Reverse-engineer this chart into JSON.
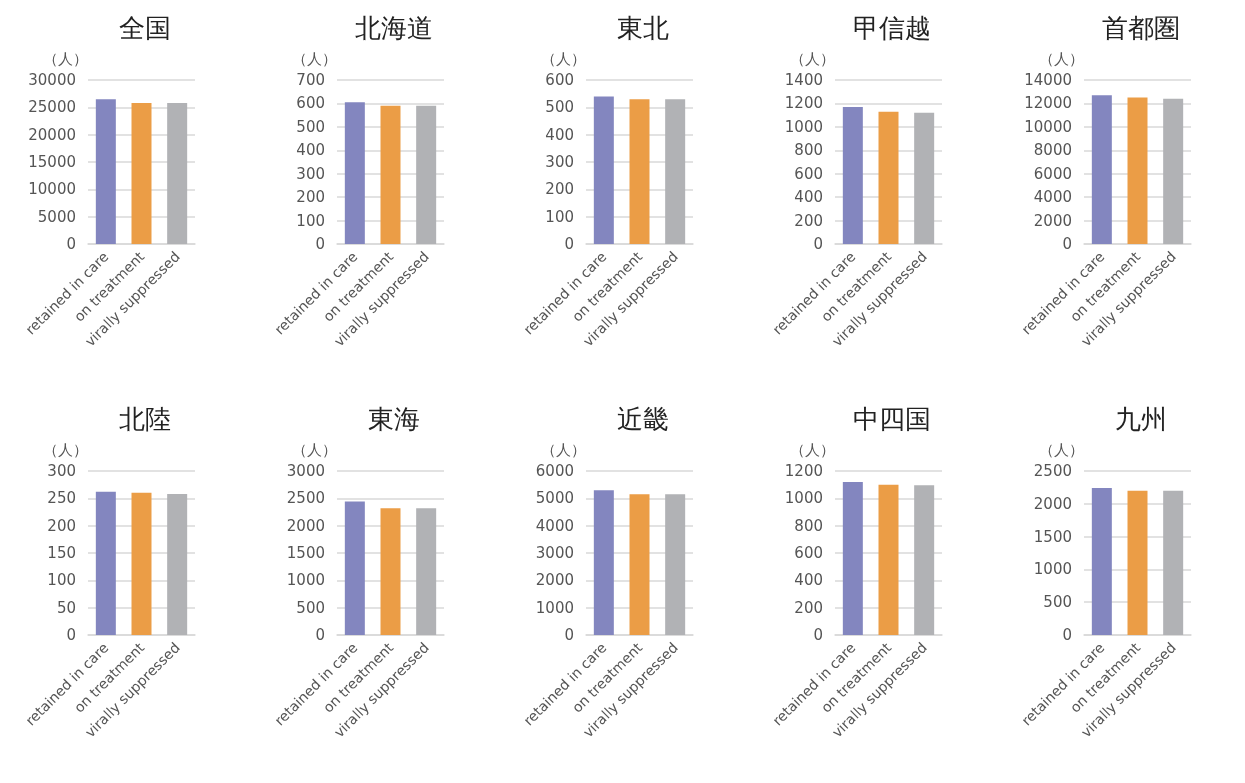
{
  "chart_data": [
    {
      "type": "bar",
      "title": "全国",
      "ylabel": "（人）",
      "categories": [
        "retained in care",
        "on treatment",
        "virally suppressed"
      ],
      "values": [
        26500,
        25800,
        25800
      ],
      "colors": [
        "#8386bf",
        "#eb9d46",
        "#b1b2b5"
      ],
      "ylim": [
        0,
        30000
      ],
      "yticks": [
        0,
        5000,
        10000,
        15000,
        20000,
        25000,
        30000
      ],
      "grid": "y"
    },
    {
      "type": "bar",
      "title": "北海道",
      "ylabel": "（人）",
      "categories": [
        "retained in care",
        "on treatment",
        "virally suppressed"
      ],
      "values": [
        605,
        590,
        590
      ],
      "colors": [
        "#8386bf",
        "#eb9d46",
        "#b1b2b5"
      ],
      "ylim": [
        0,
        700
      ],
      "yticks": [
        0,
        100,
        200,
        300,
        400,
        500,
        600,
        700
      ],
      "grid": "y"
    },
    {
      "type": "bar",
      "title": "東北",
      "ylabel": "（人）",
      "categories": [
        "retained in care",
        "on treatment",
        "virally suppressed"
      ],
      "values": [
        540,
        530,
        530
      ],
      "colors": [
        "#8386bf",
        "#eb9d46",
        "#b1b2b5"
      ],
      "ylim": [
        0,
        600
      ],
      "yticks": [
        0,
        100,
        200,
        300,
        400,
        500,
        600
      ],
      "grid": "y"
    },
    {
      "type": "bar",
      "title": "甲信越",
      "ylabel": "（人）",
      "categories": [
        "retained in care",
        "on treatment",
        "virally suppressed"
      ],
      "values": [
        1170,
        1130,
        1120
      ],
      "colors": [
        "#8386bf",
        "#eb9d46",
        "#b1b2b5"
      ],
      "ylim": [
        0,
        1400
      ],
      "yticks": [
        0,
        200,
        400,
        600,
        800,
        1000,
        1200,
        1400
      ],
      "grid": "y"
    },
    {
      "type": "bar",
      "title": "首都圏",
      "ylabel": "（人）",
      "categories": [
        "retained in care",
        "on treatment",
        "virally suppressed"
      ],
      "values": [
        12700,
        12500,
        12400
      ],
      "colors": [
        "#8386bf",
        "#eb9d46",
        "#b1b2b5"
      ],
      "ylim": [
        0,
        14000
      ],
      "yticks": [
        0,
        2000,
        4000,
        6000,
        8000,
        10000,
        12000,
        14000
      ],
      "grid": "y"
    },
    {
      "type": "bar",
      "title": "北陸",
      "ylabel": "（人）",
      "categories": [
        "retained in care",
        "on treatment",
        "virally suppressed"
      ],
      "values": [
        262,
        260,
        258
      ],
      "colors": [
        "#8386bf",
        "#eb9d46",
        "#b1b2b5"
      ],
      "ylim": [
        0,
        300
      ],
      "yticks": [
        0,
        50,
        100,
        150,
        200,
        250,
        300
      ],
      "grid": "y"
    },
    {
      "type": "bar",
      "title": "東海",
      "ylabel": "（人）",
      "categories": [
        "retained in care",
        "on treatment",
        "virally suppressed"
      ],
      "values": [
        2440,
        2320,
        2320
      ],
      "colors": [
        "#8386bf",
        "#eb9d46",
        "#b1b2b5"
      ],
      "ylim": [
        0,
        3000
      ],
      "yticks": [
        0,
        500,
        1000,
        1500,
        2000,
        2500,
        3000
      ],
      "grid": "y"
    },
    {
      "type": "bar",
      "title": "近畿",
      "ylabel": "（人）",
      "categories": [
        "retained in care",
        "on treatment",
        "virally suppressed"
      ],
      "values": [
        5300,
        5150,
        5150
      ],
      "colors": [
        "#8386bf",
        "#eb9d46",
        "#b1b2b5"
      ],
      "ylim": [
        0,
        6000
      ],
      "yticks": [
        0,
        1000,
        2000,
        3000,
        4000,
        5000,
        6000
      ],
      "grid": "y"
    },
    {
      "type": "bar",
      "title": "中四国",
      "ylabel": "（人）",
      "categories": [
        "retained in care",
        "on treatment",
        "virally suppressed"
      ],
      "values": [
        1120,
        1100,
        1095
      ],
      "colors": [
        "#8386bf",
        "#eb9d46",
        "#b1b2b5"
      ],
      "ylim": [
        0,
        1200
      ],
      "yticks": [
        0,
        200,
        400,
        600,
        800,
        1000,
        1200
      ],
      "grid": "y"
    },
    {
      "type": "bar",
      "title": "九州",
      "ylabel": "（人）",
      "categories": [
        "retained in care",
        "on treatment",
        "virally suppressed"
      ],
      "values": [
        2240,
        2200,
        2200
      ],
      "colors": [
        "#8386bf",
        "#eb9d46",
        "#b1b2b5"
      ],
      "ylim": [
        0,
        2500
      ],
      "yticks": [
        0,
        500,
        1000,
        1500,
        2000,
        2500
      ],
      "grid": "y"
    }
  ]
}
